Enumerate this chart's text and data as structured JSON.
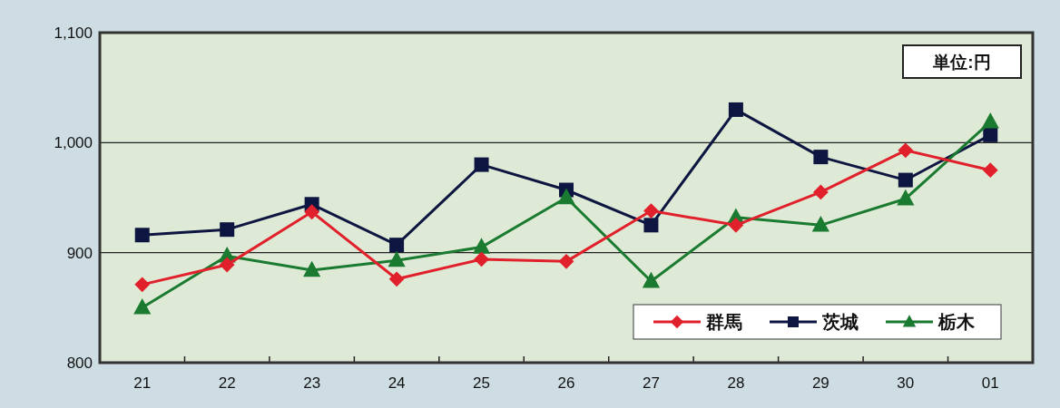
{
  "chart_data": {
    "type": "line",
    "categories": [
      "21",
      "22",
      "23",
      "24",
      "25",
      "26",
      "27",
      "28",
      "29",
      "30",
      "01"
    ],
    "series": [
      {
        "name": "群馬",
        "color": "#e0202a",
        "marker": "diamond",
        "values": [
          871,
          889,
          937,
          876,
          894,
          892,
          938,
          925,
          955,
          993,
          975
        ]
      },
      {
        "name": "茨城",
        "color": "#0d1640",
        "marker": "square",
        "values": [
          916,
          921,
          944,
          907,
          980,
          957,
          925,
          1030,
          987,
          966,
          1007
        ]
      },
      {
        "name": "栃木",
        "color": "#1a7a30",
        "marker": "triangle",
        "values": [
          850,
          897,
          884,
          893,
          905,
          950,
          874,
          932,
          925,
          949,
          1019
        ]
      }
    ],
    "ylim": [
      800,
      1100
    ],
    "yticks": [
      800,
      {
        "value": 900,
        "label": "900"
      },
      {
        "value": 1000,
        "label": "1,000"
      },
      {
        "value": 1100,
        "label": "1,100"
      }
    ],
    "grid": "y",
    "legend": "bottom right",
    "annotations": [
      "単位:円"
    ]
  }
}
